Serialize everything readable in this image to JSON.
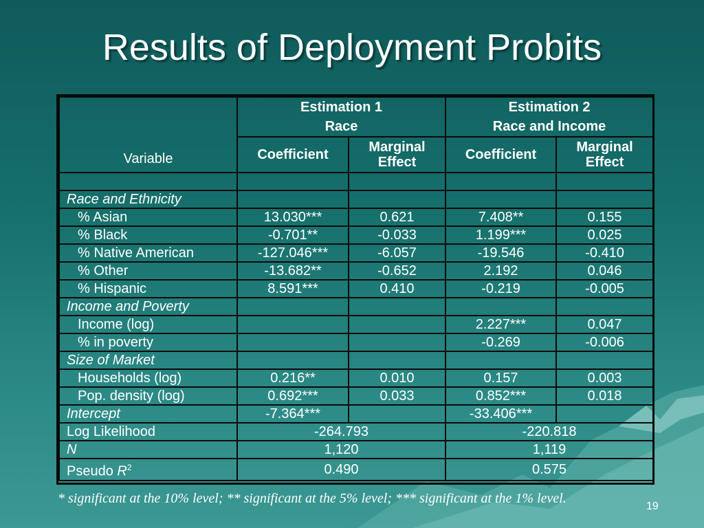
{
  "slide": {
    "title": "Results of Deployment Probits",
    "slide_number": "19",
    "footnote": "* significant at the 10% level;     ** significant at the 5% level;     *** significant at the 1% level."
  },
  "table": {
    "variable_header": "Variable",
    "est1_title": "Estimation 1",
    "est1_subtitle": "Race",
    "est2_title": "Estimation 2",
    "est2_subtitle": "Race and Income",
    "coef_label": "Coefficient",
    "marginal_label_1": "Marginal",
    "marginal_label_2": "Effect",
    "sections": {
      "race": "Race and Ethnicity",
      "income": "Income and Poverty",
      "market": "Size of Market"
    },
    "rows": {
      "asian": {
        "label": "% Asian",
        "c1": "13.030***",
        "m1": "0.621",
        "c2": "7.408**",
        "m2": "0.155"
      },
      "black": {
        "label": "% Black",
        "c1": "-0.701**",
        "m1": "-0.033",
        "c2": "1.199***",
        "m2": "0.025"
      },
      "native": {
        "label": "% Native American",
        "c1": "-127.046***",
        "m1": "-6.057",
        "c2": "-19.546",
        "m2": "-0.410"
      },
      "other": {
        "label": "% Other",
        "c1": "-13.682**",
        "m1": "-0.652",
        "c2": "2.192",
        "m2": "0.046"
      },
      "hispanic": {
        "label": "% Hispanic",
        "c1": "8.591***",
        "m1": "0.410",
        "c2": "-0.219",
        "m2": "-0.005"
      },
      "income": {
        "label": "Income (log)",
        "c1": "",
        "m1": "",
        "c2": "2.227***",
        "m2": "0.047"
      },
      "poverty": {
        "label": "% in poverty",
        "c1": "",
        "m1": "",
        "c2": "-0.269",
        "m2": "-0.006"
      },
      "households": {
        "label": "Households (log)",
        "c1": "0.216**",
        "m1": "0.010",
        "c2": "0.157",
        "m2": "0.003"
      },
      "popdensity": {
        "label": "Pop. density (log)",
        "c1": "0.692***",
        "m1": "0.033",
        "c2": "0.852***",
        "m2": "0.018"
      },
      "intercept": {
        "label": "Intercept",
        "c1": "-7.364***",
        "m1": "",
        "c2": "-33.406***",
        "m2": ""
      }
    },
    "stats": {
      "loglik": {
        "label": "Log Likelihood",
        "v1": "-264.793",
        "v2": "-220.818"
      },
      "n": {
        "label": "N",
        "v1": "1,120",
        "v2": "1,119"
      },
      "pseudo": {
        "label_prefix": "Pseudo ",
        "label_var": "R",
        "label_sup": "2",
        "v1": "0.490",
        "v2": "0.575"
      }
    }
  }
}
